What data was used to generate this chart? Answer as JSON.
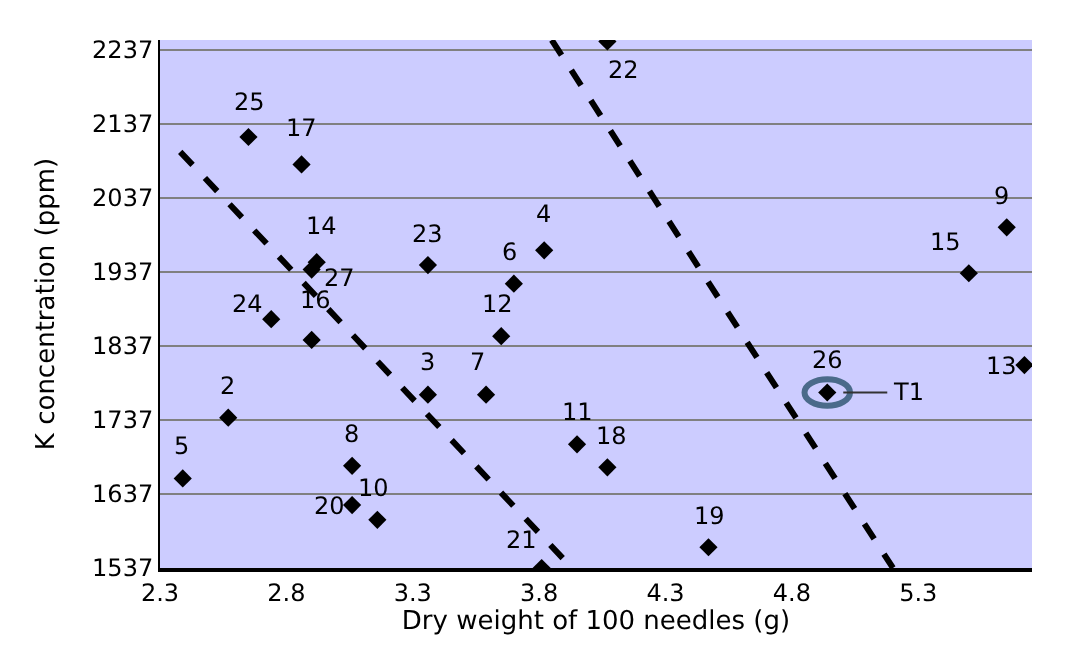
{
  "chart_data": {
    "type": "scatter",
    "xlabel": "Dry weight of 100 needles (g)",
    "ylabel": "K concentration (ppm)",
    "xlim": [
      2.3,
      5.75
    ],
    "xticks": [
      2.3,
      2.8,
      3.3,
      3.8,
      4.3,
      4.8,
      5.3
    ],
    "ylim": [
      1537,
      2250
    ],
    "yticks": [
      1537,
      1637,
      1737,
      1837,
      1937,
      2037,
      2137,
      2237
    ],
    "grid": "y",
    "marker": "diamond",
    "series": [
      {
        "color": "#000000",
        "x": [
          2.39,
          2.57,
          3.06,
          3.06,
          3.16,
          3.36,
          3.59,
          3.65,
          3.7,
          3.82,
          3.36,
          2.92,
          2.9,
          2.9,
          2.74,
          2.65,
          2.86,
          3.81,
          3.95,
          4.07,
          4.47,
          4.94,
          5.72,
          5.5,
          5.65,
          4.07
        ],
        "values": [
          1658,
          1740,
          1675,
          1622,
          1602,
          1771,
          1771,
          1850,
          1921,
          1966,
          1946,
          1950,
          1940,
          1845,
          1873,
          2119,
          2082,
          1537,
          1704,
          1673,
          1565,
          1774,
          1811,
          1935,
          1997,
          2248
        ]
      },
      {
        "type": "line",
        "line_style": "dashed",
        "marker": "none",
        "color": "#000000",
        "x": [
          2.38,
          3.93
        ],
        "values": [
          2099,
          1537
        ]
      },
      {
        "type": "line",
        "line_style": "dashed",
        "marker": "none",
        "color": "#000000",
        "x": [
          3.85,
          5.2
        ],
        "values": [
          2250,
          1537
        ]
      }
    ],
    "annotations": [
      {
        "text": "5",
        "x": 2.39,
        "y": 1658
      },
      {
        "text": "2",
        "x": 2.57,
        "y": 1740
      },
      {
        "text": "8",
        "x": 3.06,
        "y": 1675
      },
      {
        "text": "20",
        "x": 3.06,
        "y": 1622
      },
      {
        "text": "10",
        "x": 3.16,
        "y": 1602
      },
      {
        "text": "3",
        "x": 3.36,
        "y": 1771
      },
      {
        "text": "7",
        "x": 3.59,
        "y": 1771
      },
      {
        "text": "12",
        "x": 3.65,
        "y": 1850
      },
      {
        "text": "6",
        "x": 3.7,
        "y": 1921
      },
      {
        "text": "4",
        "x": 3.82,
        "y": 1966
      },
      {
        "text": "23",
        "x": 3.36,
        "y": 1946
      },
      {
        "text": "14",
        "x": 2.92,
        "y": 1950
      },
      {
        "text": "27",
        "x": 2.9,
        "y": 1940
      },
      {
        "text": "16",
        "x": 2.9,
        "y": 1845
      },
      {
        "text": "24",
        "x": 2.74,
        "y": 1873
      },
      {
        "text": "25",
        "x": 2.65,
        "y": 2119
      },
      {
        "text": "17",
        "x": 2.86,
        "y": 2082
      },
      {
        "text": "21",
        "x": 3.81,
        "y": 1537
      },
      {
        "text": "11",
        "x": 3.95,
        "y": 1704
      },
      {
        "text": "18",
        "x": 4.07,
        "y": 1673
      },
      {
        "text": "19",
        "x": 4.47,
        "y": 1565
      },
      {
        "text": "26",
        "x": 4.94,
        "y": 1774
      },
      {
        "text": "13",
        "x": 5.72,
        "y": 1811
      },
      {
        "text": "15",
        "x": 5.5,
        "y": 1935
      },
      {
        "text": "9",
        "x": 5.65,
        "y": 1997
      },
      {
        "text": "22",
        "x": 4.07,
        "y": 2248
      },
      {
        "text": "T1",
        "x": 4.94,
        "y": 1774
      }
    ]
  }
}
